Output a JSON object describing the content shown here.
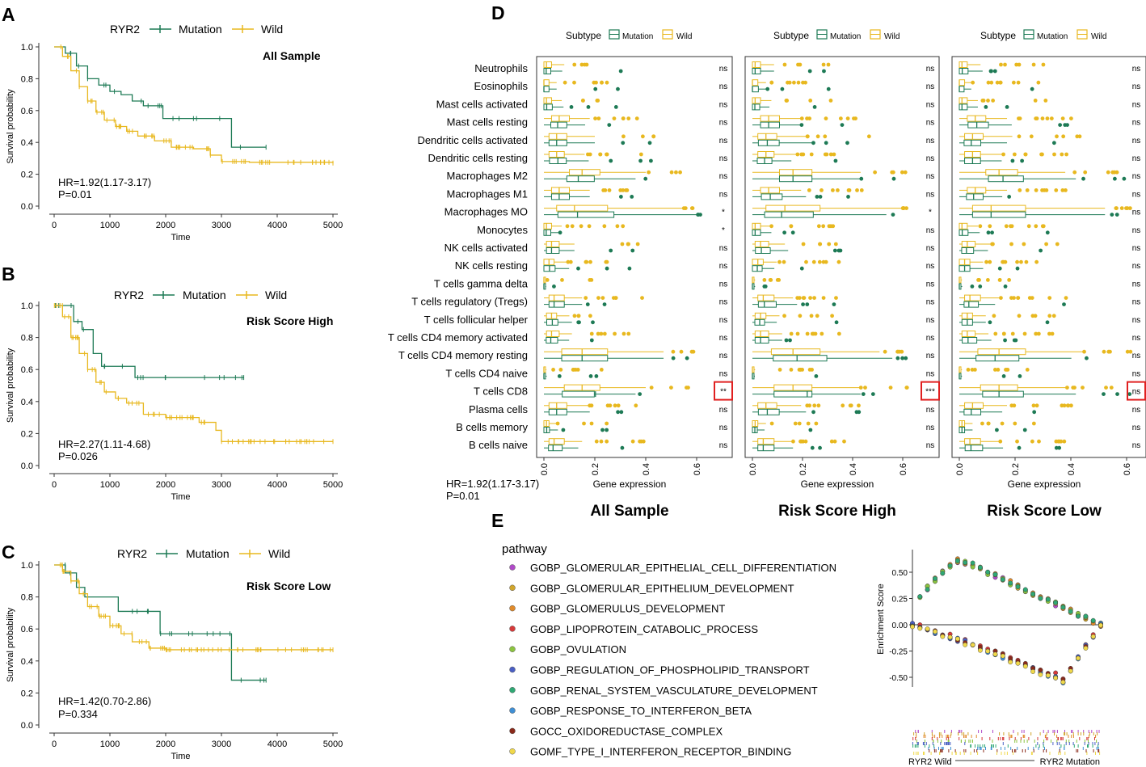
{
  "survival_common": {
    "ylabel": "Survival probability",
    "xlabel": "Time",
    "legend_label": "RYR2",
    "legend_mutation": "Mutation",
    "legend_wild": "Wild",
    "yticks": [
      "0.0",
      "0.2",
      "0.4",
      "0.6",
      "0.8",
      "1.0"
    ]
  },
  "panelA": {
    "letter": "A",
    "subtitle": "All Sample",
    "hr": "HR=1.92(1.17-3.17)",
    "p": "P=0.01"
  },
  "panelB": {
    "letter": "B",
    "subtitle": "Risk Score High",
    "hr": "HR=2.27(1.11-4.68)",
    "p": "P=0.026"
  },
  "panelC": {
    "letter": "C",
    "subtitle": "Risk Score Low",
    "hr": "HR=1.42(0.70-2.86)",
    "p": "P=0.334"
  },
  "panelD": {
    "letter": "D",
    "legend_label": "Subtype",
    "legend_mutation": "Mutation",
    "legend_wild": "Wild",
    "xlabel": "Gene expression",
    "xticks": [
      "0.0",
      "0.2",
      "0.4",
      "0.6"
    ],
    "extra_hr": "HR=1.92(1.17-3.17)",
    "extra_p": "P=0.01",
    "titles": [
      "All Sample",
      "Risk Score High",
      "Risk Score Low"
    ]
  },
  "panelE": {
    "letter": "E",
    "legend_title": "pathway",
    "ylabel": "Enrichment Score",
    "yticks": [
      "0.50",
      "0.25",
      "0.00",
      "-0.25",
      "-0.50"
    ],
    "x_left": "RYR2 Wild",
    "x_right": "RYR2 Mutation"
  },
  "chart_data": [
    {
      "type": "line",
      "subtype": "kaplan-meier",
      "panel": "A",
      "title": "All Sample",
      "xlabel": "Time",
      "ylabel": "Survival probability",
      "xlim": [
        0,
        5000
      ],
      "ylim": [
        0,
        1
      ],
      "xticks": [
        0,
        1000,
        2000,
        3000,
        4000,
        5000
      ],
      "series": [
        {
          "name": "Mutation",
          "color": "#1d7a55",
          "points": [
            [
              0,
              1.0
            ],
            [
              200,
              0.96
            ],
            [
              400,
              0.88
            ],
            [
              600,
              0.8
            ],
            [
              800,
              0.76
            ],
            [
              1000,
              0.72
            ],
            [
              1200,
              0.7
            ],
            [
              1400,
              0.66
            ],
            [
              1600,
              0.63
            ],
            [
              1900,
              0.63
            ],
            [
              1950,
              0.55
            ],
            [
              3150,
              0.55
            ],
            [
              3180,
              0.37
            ],
            [
              3800,
              0.37
            ]
          ]
        },
        {
          "name": "Wild",
          "color": "#e8b81f",
          "points": [
            [
              0,
              1.0
            ],
            [
              150,
              0.94
            ],
            [
              300,
              0.85
            ],
            [
              450,
              0.75
            ],
            [
              600,
              0.66
            ],
            [
              750,
              0.59
            ],
            [
              900,
              0.54
            ],
            [
              1100,
              0.5
            ],
            [
              1300,
              0.47
            ],
            [
              1500,
              0.44
            ],
            [
              1800,
              0.41
            ],
            [
              2100,
              0.37
            ],
            [
              2500,
              0.36
            ],
            [
              2800,
              0.32
            ],
            [
              3000,
              0.28
            ],
            [
              3500,
              0.275
            ],
            [
              5000,
              0.27
            ]
          ]
        }
      ]
    },
    {
      "type": "line",
      "subtype": "kaplan-meier",
      "panel": "B",
      "title": "Risk Score High",
      "xlabel": "Time",
      "ylabel": "Survival probability",
      "xlim": [
        0,
        5000
      ],
      "ylim": [
        0,
        1
      ],
      "xticks": [
        0,
        1000,
        2000,
        3000,
        4000,
        5000
      ],
      "series": [
        {
          "name": "Mutation",
          "color": "#1d7a55",
          "points": [
            [
              0,
              1.0
            ],
            [
              250,
              1.0
            ],
            [
              350,
              0.9
            ],
            [
              500,
              0.85
            ],
            [
              700,
              0.7
            ],
            [
              850,
              0.62
            ],
            [
              1400,
              0.62
            ],
            [
              1450,
              0.55
            ],
            [
              3400,
              0.55
            ]
          ]
        },
        {
          "name": "Wild",
          "color": "#e8b81f",
          "points": [
            [
              0,
              1.0
            ],
            [
              150,
              0.93
            ],
            [
              300,
              0.8
            ],
            [
              450,
              0.7
            ],
            [
              600,
              0.6
            ],
            [
              750,
              0.52
            ],
            [
              900,
              0.46
            ],
            [
              1100,
              0.42
            ],
            [
              1300,
              0.39
            ],
            [
              1600,
              0.32
            ],
            [
              2000,
              0.3
            ],
            [
              2600,
              0.27
            ],
            [
              2900,
              0.22
            ],
            [
              3000,
              0.15
            ],
            [
              5000,
              0.15
            ]
          ]
        }
      ]
    },
    {
      "type": "line",
      "subtype": "kaplan-meier",
      "panel": "C",
      "title": "Risk Score Low",
      "xlabel": "Time",
      "ylabel": "Survival probability",
      "xlim": [
        0,
        5000
      ],
      "ylim": [
        0,
        1
      ],
      "xticks": [
        0,
        1000,
        2000,
        3000,
        4000,
        5000
      ],
      "series": [
        {
          "name": "Mutation",
          "color": "#1d7a55",
          "points": [
            [
              0,
              1.0
            ],
            [
              200,
              0.95
            ],
            [
              400,
              0.86
            ],
            [
              550,
              0.8
            ],
            [
              1100,
              0.8
            ],
            [
              1150,
              0.71
            ],
            [
              1850,
              0.71
            ],
            [
              1900,
              0.57
            ],
            [
              3150,
              0.57
            ],
            [
              3180,
              0.28
            ],
            [
              3800,
              0.28
            ]
          ]
        },
        {
          "name": "Wild",
          "color": "#e8b81f",
          "points": [
            [
              0,
              1.0
            ],
            [
              150,
              0.96
            ],
            [
              300,
              0.9
            ],
            [
              450,
              0.82
            ],
            [
              600,
              0.74
            ],
            [
              800,
              0.68
            ],
            [
              1000,
              0.62
            ],
            [
              1200,
              0.57
            ],
            [
              1400,
              0.52
            ],
            [
              1700,
              0.48
            ],
            [
              2000,
              0.47
            ],
            [
              5000,
              0.47
            ]
          ]
        }
      ]
    },
    {
      "type": "box",
      "panel": "D",
      "xlabel": "Gene expression",
      "xlim": [
        0,
        0.7
      ],
      "subplot_titles": [
        "All Sample",
        "Risk Score High",
        "Risk Score Low"
      ],
      "categories": [
        "Neutrophils",
        "Eosinophils",
        "Mast cells activated",
        "Mast cells resting",
        "Dendritic cells activated",
        "Dendritic cells resting",
        "Macrophages M2",
        "Macrophages M1",
        "Macrophages MO",
        "Monocytes",
        "NK cells activated",
        "NK cells resting",
        "T cells gamma delta",
        "T cells regulatory (Tregs)",
        "T cells follicular helper",
        "T cells CD4 memory activated",
        "T cells CD4 memory resting",
        "T cells CD4 naive",
        "T cells CD8",
        "Plasma cells",
        "B cells memory",
        "B cells naive"
      ],
      "significance": [
        [
          "ns",
          "ns",
          "ns",
          "ns",
          "ns",
          "ns",
          "ns",
          "ns",
          "*",
          "*",
          "ns",
          "ns",
          "ns",
          "ns",
          "ns",
          "ns",
          "ns",
          "ns",
          "**",
          "ns",
          "ns",
          "ns"
        ],
        [
          "ns",
          "ns",
          "ns",
          "ns",
          "ns",
          "ns",
          "ns",
          "ns",
          "*",
          "ns",
          "ns",
          "ns",
          "ns",
          "ns",
          "ns",
          "ns",
          "ns",
          "ns",
          "***",
          "ns",
          "ns",
          "ns"
        ],
        [
          "ns",
          "ns",
          "ns",
          "ns",
          "ns",
          "ns",
          "ns",
          "ns",
          "ns",
          "ns",
          "ns",
          "ns",
          "ns",
          "ns",
          "ns",
          "ns",
          "ns",
          "ns",
          "ns",
          "ns",
          "ns",
          "ns"
        ]
      ],
      "highlighted_category": "T cells CD8",
      "series": [
        {
          "name": "Wild",
          "color": "#e8b81f"
        },
        {
          "name": "Mutation",
          "color": "#1d7a55"
        }
      ]
    },
    {
      "type": "scatter",
      "subtype": "gsea",
      "panel": "E",
      "ylabel": "Enrichment Score",
      "ylim": [
        -0.6,
        0.7
      ],
      "x_left": "RYR2 Wild",
      "x_right": "RYR2 Mutation",
      "series": [
        {
          "name": "GOBP_GLOMERULAR_EPITHELIAL_CELL_DIFFERENTIATION",
          "color": "#b04ac8",
          "direction": "up",
          "peak": 0.62
        },
        {
          "name": "GOBP_GLOMERULAR_EPITHELIUM_DEVELOPMENT",
          "color": "#d0a52c",
          "direction": "up",
          "peak": 0.62
        },
        {
          "name": "GOBP_GLOMERULUS_DEVELOPMENT",
          "color": "#e08a2a",
          "direction": "up",
          "peak": 0.63
        },
        {
          "name": "GOBP_LIPOPROTEIN_CATABOLIC_PROCESS",
          "color": "#d63a3a",
          "direction": "down",
          "peak": -0.5
        },
        {
          "name": "GOBP_OVULATION",
          "color": "#8cc440",
          "direction": "up",
          "peak": 0.62
        },
        {
          "name": "GOBP_REGULATION_OF_PHOSPHOLIPID_TRANSPORT",
          "color": "#4a5fc4",
          "direction": "down",
          "peak": -0.53
        },
        {
          "name": "GOBP_RENAL_SYSTEM_VASCULATURE_DEVELOPMENT",
          "color": "#2fa874",
          "direction": "up",
          "peak": 0.63
        },
        {
          "name": "GOBP_RESPONSE_TO_INTERFERON_BETA",
          "color": "#3f8fd4",
          "direction": "down",
          "peak": -0.54
        },
        {
          "name": "GOCC_OXIDOREDUCTASE_COMPLEX",
          "color": "#8a2a1a",
          "direction": "down",
          "peak": -0.52
        },
        {
          "name": "GOMF_TYPE_I_INTERFERON_RECEPTOR_BINDING",
          "color": "#f0d84a",
          "direction": "down",
          "peak": -0.55
        }
      ]
    }
  ]
}
